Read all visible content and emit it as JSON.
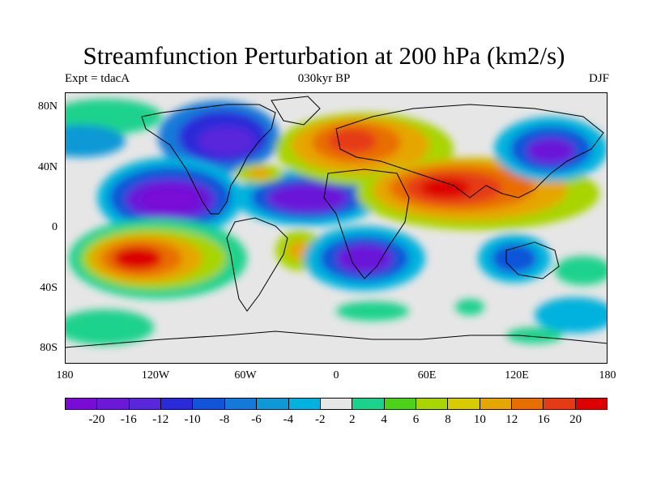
{
  "title": "Streamfunction Perturbation at 200 hPa (km2/s)",
  "subtitle_left": "Expt = tdacA",
  "subtitle_center": "030kyr BP",
  "subtitle_right": "DJF",
  "lat_labels": [
    "80N",
    "40N",
    "0",
    "40S",
    "80S"
  ],
  "lon_labels": [
    "180",
    "120W",
    "60W",
    "0",
    "60E",
    "120E",
    "180"
  ],
  "colorbar": {
    "labels": [
      "-20",
      "-16",
      "-12",
      "-10",
      "-8",
      "-6",
      "-4",
      "-2",
      "2",
      "4",
      "6",
      "8",
      "10",
      "12",
      "16",
      "20"
    ],
    "colors": [
      "#7a0ad6",
      "#6b18d9",
      "#5a26dc",
      "#2a2ad8",
      "#1054d8",
      "#137ad9",
      "#0e98d6",
      "#00b2dd",
      "#e6e6e6",
      "#1bd28c",
      "#4dd21a",
      "#a8d400",
      "#d6cc00",
      "#e6a600",
      "#e86e00",
      "#e53b14",
      "#dc0000"
    ]
  },
  "map": {
    "projection": "cylindrical equidistant",
    "lon_range": [
      -180,
      180
    ],
    "lat_range": [
      -90,
      90
    ],
    "background_color": "#e6e6e6"
  }
}
